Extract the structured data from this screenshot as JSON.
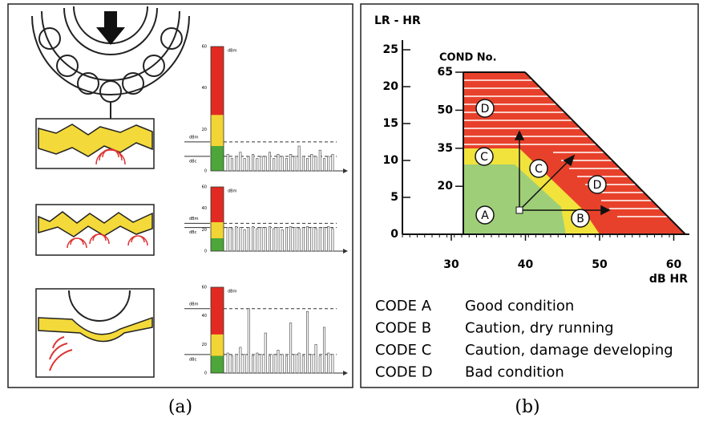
{
  "panel_a": {
    "label": "(a)",
    "scale_ticks": [
      0,
      20,
      40,
      60
    ],
    "dbm_label": "dBm",
    "dbc_label": "dBc",
    "charts": [
      {
        "dbm": 14,
        "dbc": 7,
        "bars": [
          8,
          6,
          7,
          9,
          6,
          7,
          8,
          6,
          7,
          7,
          9,
          6,
          8,
          7,
          6,
          8,
          7,
          12,
          7,
          6,
          8,
          7,
          10,
          6,
          7,
          8
        ]
      },
      {
        "dbm": 26,
        "dbc": 22,
        "bars": [
          22,
          21,
          23,
          22,
          20,
          22,
          23,
          21,
          22,
          22,
          23,
          21,
          22,
          20,
          22,
          23,
          22,
          21,
          22,
          23,
          22,
          21,
          22,
          22,
          23,
          21
        ]
      },
      {
        "dbm": 45,
        "dbc": 13,
        "bars": [
          14,
          12,
          13,
          18,
          13,
          45,
          12,
          14,
          13,
          28,
          12,
          13,
          16,
          13,
          12,
          35,
          13,
          14,
          12,
          43,
          13,
          20,
          12,
          32,
          14,
          13
        ]
      }
    ]
  },
  "panel_b": {
    "label": "(b)",
    "y_label": "LR - HR",
    "cond_label": "COND No.",
    "x_label": "dB HR",
    "yticks": [
      0,
      5,
      10,
      15,
      20,
      25
    ],
    "xticks": [
      30,
      40,
      50,
      60
    ],
    "cond_ticks": [
      20,
      35,
      50,
      65
    ],
    "regions": [
      "D",
      "C",
      "C",
      "D",
      "A",
      "B"
    ],
    "codes": [
      {
        "code": "CODE A",
        "meaning": "Good condition"
      },
      {
        "code": "CODE B",
        "meaning": "Caution, dry running"
      },
      {
        "code": "CODE C",
        "meaning": "Caution, damage developing"
      },
      {
        "code": "CODE D",
        "meaning": "Bad condition"
      }
    ]
  }
}
